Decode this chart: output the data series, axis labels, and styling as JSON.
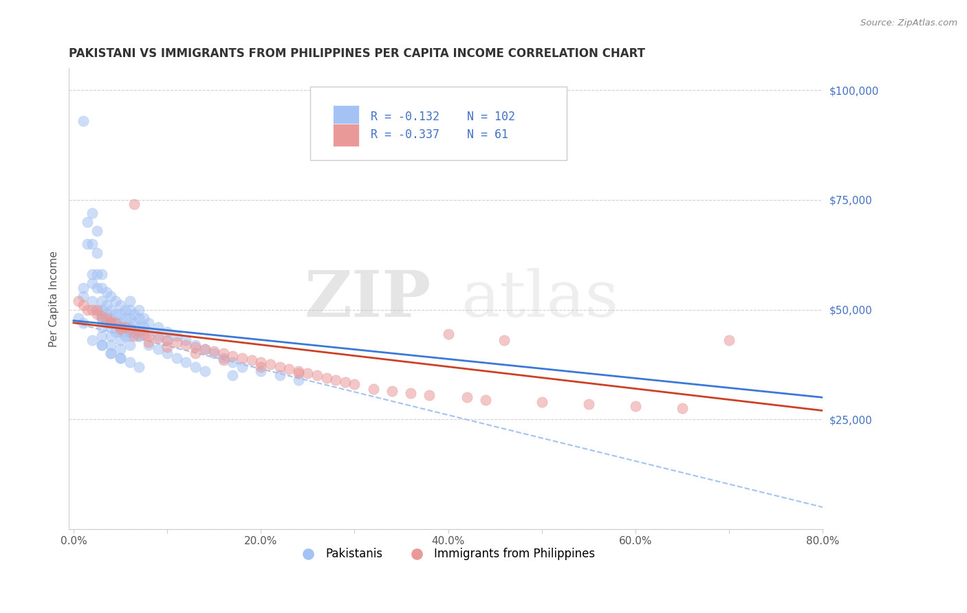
{
  "title": "PAKISTANI VS IMMIGRANTS FROM PHILIPPINES PER CAPITA INCOME CORRELATION CHART",
  "source": "Source: ZipAtlas.com",
  "ylabel": "Per Capita Income",
  "xlim": [
    -0.005,
    0.8
  ],
  "ylim": [
    0,
    105000
  ],
  "xticks": [
    0.0,
    0.1,
    0.2,
    0.3,
    0.4,
    0.5,
    0.6,
    0.7,
    0.8
  ],
  "xticklabels": [
    "0.0%",
    "",
    "20.0%",
    "",
    "40.0%",
    "",
    "60.0%",
    "",
    "80.0%"
  ],
  "yticks": [
    0,
    25000,
    50000,
    75000,
    100000
  ],
  "yticklabels": [
    "",
    "$25,000",
    "$50,000",
    "$75,000",
    "$100,000"
  ],
  "blue_color": "#a4c2f4",
  "pink_color": "#ea9999",
  "blue_fill_color": "#a4c2f4",
  "pink_fill_color": "#ea9999",
  "blue_line_color": "#3c78d8",
  "pink_line_color": "#cc4125",
  "dash_line_color": "#a4c2f4",
  "ytick_color": "#4472c4",
  "r_blue": -0.132,
  "n_blue": 102,
  "r_pink": -0.337,
  "n_pink": 61,
  "legend_label_blue": "Pakistanis",
  "legend_label_pink": "Immigrants from Philippines",
  "watermark_zip": "ZIP",
  "watermark_atlas": "atlas",
  "background_color": "#ffffff",
  "blue_scatter_x": [
    0.005,
    0.01,
    0.01,
    0.01,
    0.015,
    0.015,
    0.02,
    0.02,
    0.02,
    0.02,
    0.025,
    0.025,
    0.025,
    0.025,
    0.025,
    0.03,
    0.03,
    0.03,
    0.03,
    0.03,
    0.03,
    0.03,
    0.03,
    0.035,
    0.035,
    0.035,
    0.035,
    0.04,
    0.04,
    0.04,
    0.04,
    0.04,
    0.04,
    0.04,
    0.045,
    0.045,
    0.045,
    0.045,
    0.05,
    0.05,
    0.05,
    0.05,
    0.05,
    0.05,
    0.05,
    0.055,
    0.055,
    0.055,
    0.055,
    0.06,
    0.06,
    0.06,
    0.06,
    0.06,
    0.06,
    0.065,
    0.065,
    0.065,
    0.07,
    0.07,
    0.07,
    0.07,
    0.075,
    0.075,
    0.08,
    0.08,
    0.09,
    0.09,
    0.1,
    0.1,
    0.11,
    0.12,
    0.13,
    0.14,
    0.15,
    0.16,
    0.17,
    0.18,
    0.2,
    0.22,
    0.24,
    0.01,
    0.02,
    0.02,
    0.03,
    0.03,
    0.04,
    0.04,
    0.05,
    0.05,
    0.06,
    0.06,
    0.07,
    0.07,
    0.08,
    0.09,
    0.1,
    0.11,
    0.12,
    0.13,
    0.14,
    0.17
  ],
  "blue_scatter_y": [
    48000,
    93000,
    55000,
    47000,
    70000,
    65000,
    72000,
    65000,
    58000,
    52000,
    68000,
    63000,
    58000,
    55000,
    50000,
    58000,
    55000,
    52000,
    50000,
    48000,
    46000,
    44000,
    42000,
    54000,
    51000,
    49000,
    47000,
    53000,
    50000,
    48000,
    46000,
    44000,
    42000,
    40000,
    52000,
    49000,
    47000,
    45000,
    51000,
    49000,
    47000,
    45000,
    43000,
    41000,
    39000,
    50000,
    48000,
    46000,
    44000,
    52000,
    50000,
    48000,
    46000,
    44000,
    42000,
    49000,
    47000,
    45000,
    50000,
    48000,
    46000,
    44000,
    48000,
    46000,
    47000,
    45000,
    46000,
    44000,
    45000,
    43000,
    44000,
    43000,
    42000,
    41000,
    40000,
    39000,
    38000,
    37000,
    36000,
    35000,
    34000,
    53000,
    56000,
    43000,
    48000,
    42000,
    47000,
    40000,
    46000,
    39000,
    45000,
    38000,
    44000,
    37000,
    42000,
    41000,
    40000,
    39000,
    38000,
    37000,
    36000,
    35000
  ],
  "pink_scatter_x": [
    0.005,
    0.01,
    0.015,
    0.02,
    0.025,
    0.03,
    0.035,
    0.04,
    0.045,
    0.05,
    0.055,
    0.06,
    0.065,
    0.07,
    0.075,
    0.08,
    0.09,
    0.1,
    0.11,
    0.12,
    0.13,
    0.14,
    0.15,
    0.16,
    0.17,
    0.18,
    0.19,
    0.2,
    0.21,
    0.22,
    0.23,
    0.24,
    0.25,
    0.26,
    0.27,
    0.28,
    0.29,
    0.3,
    0.32,
    0.34,
    0.36,
    0.38,
    0.4,
    0.42,
    0.44,
    0.46,
    0.5,
    0.55,
    0.6,
    0.65,
    0.7,
    0.025,
    0.04,
    0.05,
    0.065,
    0.08,
    0.1,
    0.13,
    0.16,
    0.2,
    0.24
  ],
  "pink_scatter_y": [
    52000,
    51000,
    50000,
    50000,
    49000,
    48500,
    48000,
    47500,
    47000,
    46000,
    46000,
    45500,
    74000,
    45000,
    44500,
    44000,
    43500,
    43000,
    42500,
    42000,
    41500,
    41000,
    40500,
    40000,
    39500,
    39000,
    38500,
    38000,
    37500,
    37000,
    36500,
    36000,
    35500,
    35000,
    34500,
    34000,
    33500,
    33000,
    32000,
    31500,
    31000,
    30500,
    44500,
    30000,
    29500,
    43000,
    29000,
    28500,
    28000,
    27500,
    43000,
    50000,
    47000,
    45500,
    44000,
    42500,
    41500,
    40000,
    38500,
    37000,
    35500
  ],
  "blue_line_x": [
    0.0,
    0.8
  ],
  "blue_line_y": [
    47500,
    30000
  ],
  "pink_line_x": [
    0.0,
    0.8
  ],
  "pink_line_y": [
    47000,
    27000
  ],
  "dash_line_x": [
    0.0,
    0.8
  ],
  "dash_line_y": [
    47000,
    5000
  ]
}
